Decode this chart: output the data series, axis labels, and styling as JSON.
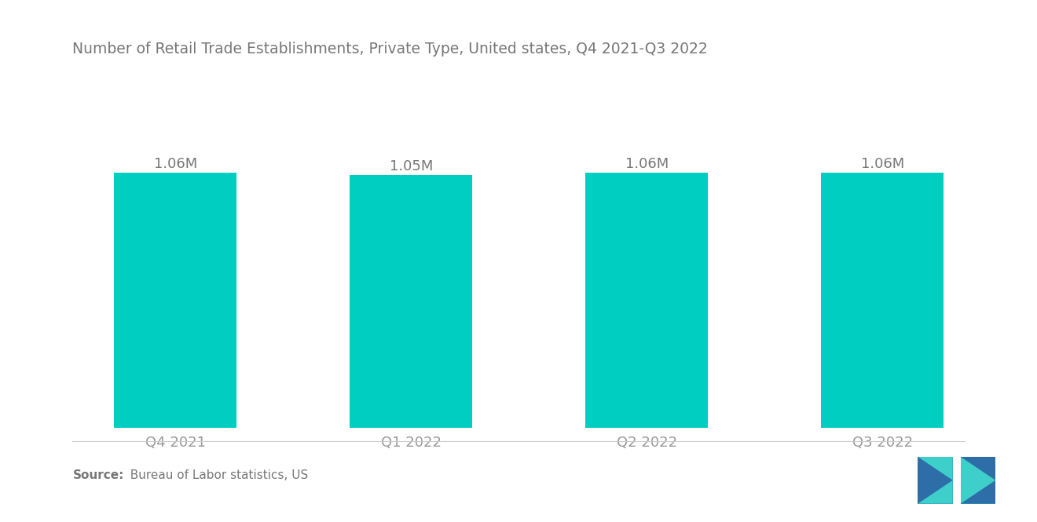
{
  "title": "Number of Retail Trade Establishments, Private Type, United states, Q4 2021-Q3 2022",
  "categories": [
    "Q4 2021",
    "Q1 2022",
    "Q2 2022",
    "Q3 2022"
  ],
  "values": [
    1.06,
    1.05,
    1.06,
    1.06
  ],
  "labels": [
    "1.06M",
    "1.05M",
    "1.06M",
    "1.06M"
  ],
  "bar_color": "#00CEC0",
  "background_color": "#ffffff",
  "title_color": "#777777",
  "label_color": "#777777",
  "tick_color": "#999999",
  "source_bold": "Source:",
  "source_rest": "  Bureau of Labor statistics, US",
  "ylim": [
    0,
    1.3
  ],
  "bar_width": 0.52,
  "title_fontsize": 13.5,
  "label_fontsize": 13,
  "tick_fontsize": 13,
  "source_fontsize": 11,
  "logo_blue": "#2D6EA8",
  "logo_teal": "#3ECFCA"
}
